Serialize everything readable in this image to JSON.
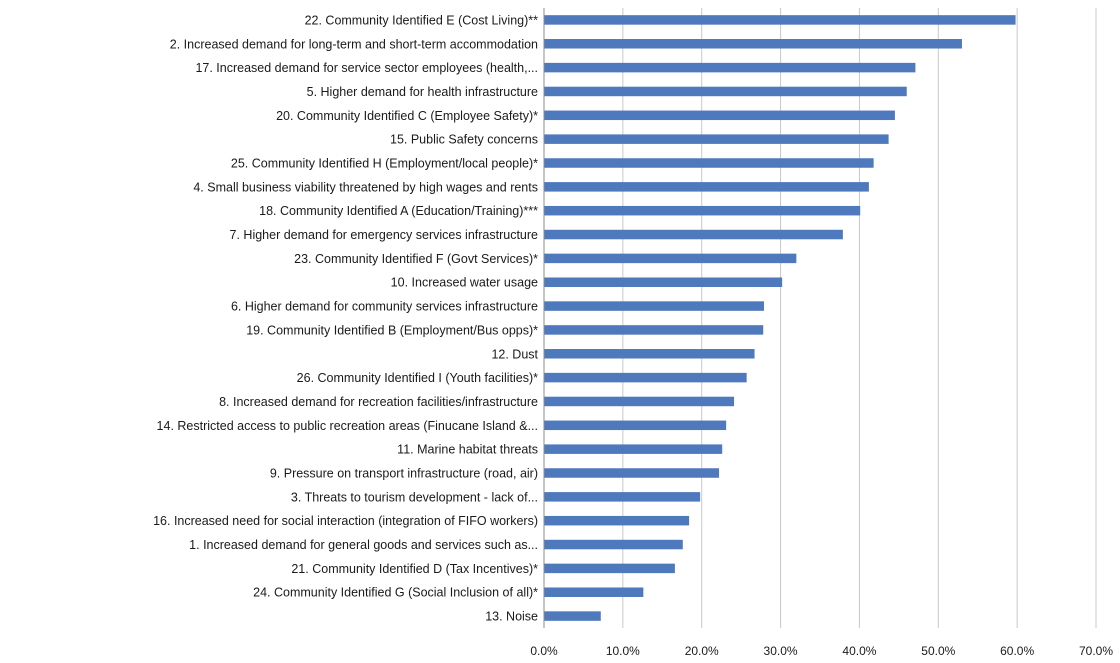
{
  "chart_data": {
    "type": "bar",
    "orientation": "horizontal",
    "title": "",
    "xlabel": "",
    "ylabel": "",
    "xlim": [
      0,
      70
    ],
    "ticks": [
      "0.0%",
      "10.0%",
      "20.0%",
      "30.0%",
      "40.0%",
      "50.0%",
      "60.0%",
      "70.0%"
    ],
    "tick_values": [
      0,
      10,
      20,
      30,
      40,
      50,
      60,
      70
    ],
    "grid": true,
    "legend": "none",
    "bar_color": "#4f79bd",
    "categories": [
      "22. Community Identified E (Cost Living)**",
      "2. Increased demand for long-term and short-term accommodation",
      "17. Increased demand for service sector employees (health,...",
      "5. Higher demand for health infrastructure",
      "20. Community Identified C (Employee Safety)*",
      "15. Public Safety concerns",
      "25. Community Identified H (Employment/local people)*",
      "4. Small business viability threatened by high wages and rents",
      "18. Community Identified A (Education/Training)***",
      "7. Higher demand for emergency services infrastructure",
      "23. Community Identified F (Govt Services)*",
      "10. Increased water usage",
      "6. Higher demand for community services infrastructure",
      "19. Community Identified B (Employment/Bus opps)*",
      "12. Dust",
      "26. Community Identified I (Youth facilities)*",
      "8. Increased demand for recreation facilities/infrastructure",
      "14. Restricted access to public recreation areas (Finucane Island &...",
      "11. Marine habitat threats",
      "9. Pressure on transport infrastructure (road, air)",
      "3. Threats to tourism development - lack of...",
      "16. Increased need for social interaction (integration of FIFO workers)",
      "1. Increased demand for general goods and services such as...",
      "21. Community Identified D (Tax Incentives)*",
      "24. Community Identified G (Social Inclusion of all)*",
      "13. Noise"
    ],
    "values": [
      59.8,
      53.0,
      47.1,
      46.0,
      44.5,
      43.7,
      41.8,
      41.2,
      40.1,
      37.9,
      32.0,
      30.2,
      27.9,
      27.8,
      26.7,
      25.7,
      24.1,
      23.1,
      22.6,
      22.2,
      19.8,
      18.4,
      17.6,
      16.6,
      12.6,
      7.2
    ]
  }
}
